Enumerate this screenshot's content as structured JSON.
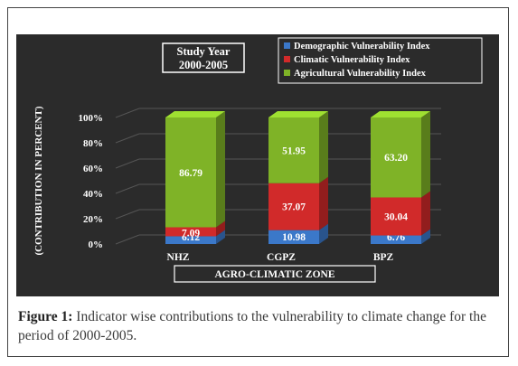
{
  "chart_data": {
    "type": "bar",
    "stacked": true,
    "percent_stacked": true,
    "categories": [
      "NHZ",
      "CGPZ",
      "BPZ"
    ],
    "series": [
      {
        "name": "Demographic Vulnerability Index",
        "values": [
          6.12,
          10.98,
          6.76
        ],
        "color": "#3b78c9"
      },
      {
        "name": "Climatic Vulnerability Index",
        "values": [
          7.09,
          37.07,
          30.04
        ],
        "color": "#d12a2a"
      },
      {
        "name": "Agricultural Vulnerability Index",
        "values": [
          86.79,
          51.95,
          63.2
        ],
        "color": "#7fb327"
      }
    ],
    "title": "Study Year 2000-2005",
    "title_lines": [
      "Study Year",
      "2000-2005"
    ],
    "xlabel": "AGRO-CLIMATIC ZONE",
    "ylabel": "(CONTRIBUTION IN PERCENT)",
    "yticks": [
      "0%",
      "20%",
      "40%",
      "60%",
      "80%",
      "100%"
    ],
    "ylim": [
      0,
      100
    ],
    "grid": true,
    "legend_position": "top-right",
    "background": "#2b2b2b"
  },
  "caption": {
    "label": "Figure 1:",
    "text": " Indicator wise contributions to the vulnerability to climate change for the period of 2000-2005."
  }
}
